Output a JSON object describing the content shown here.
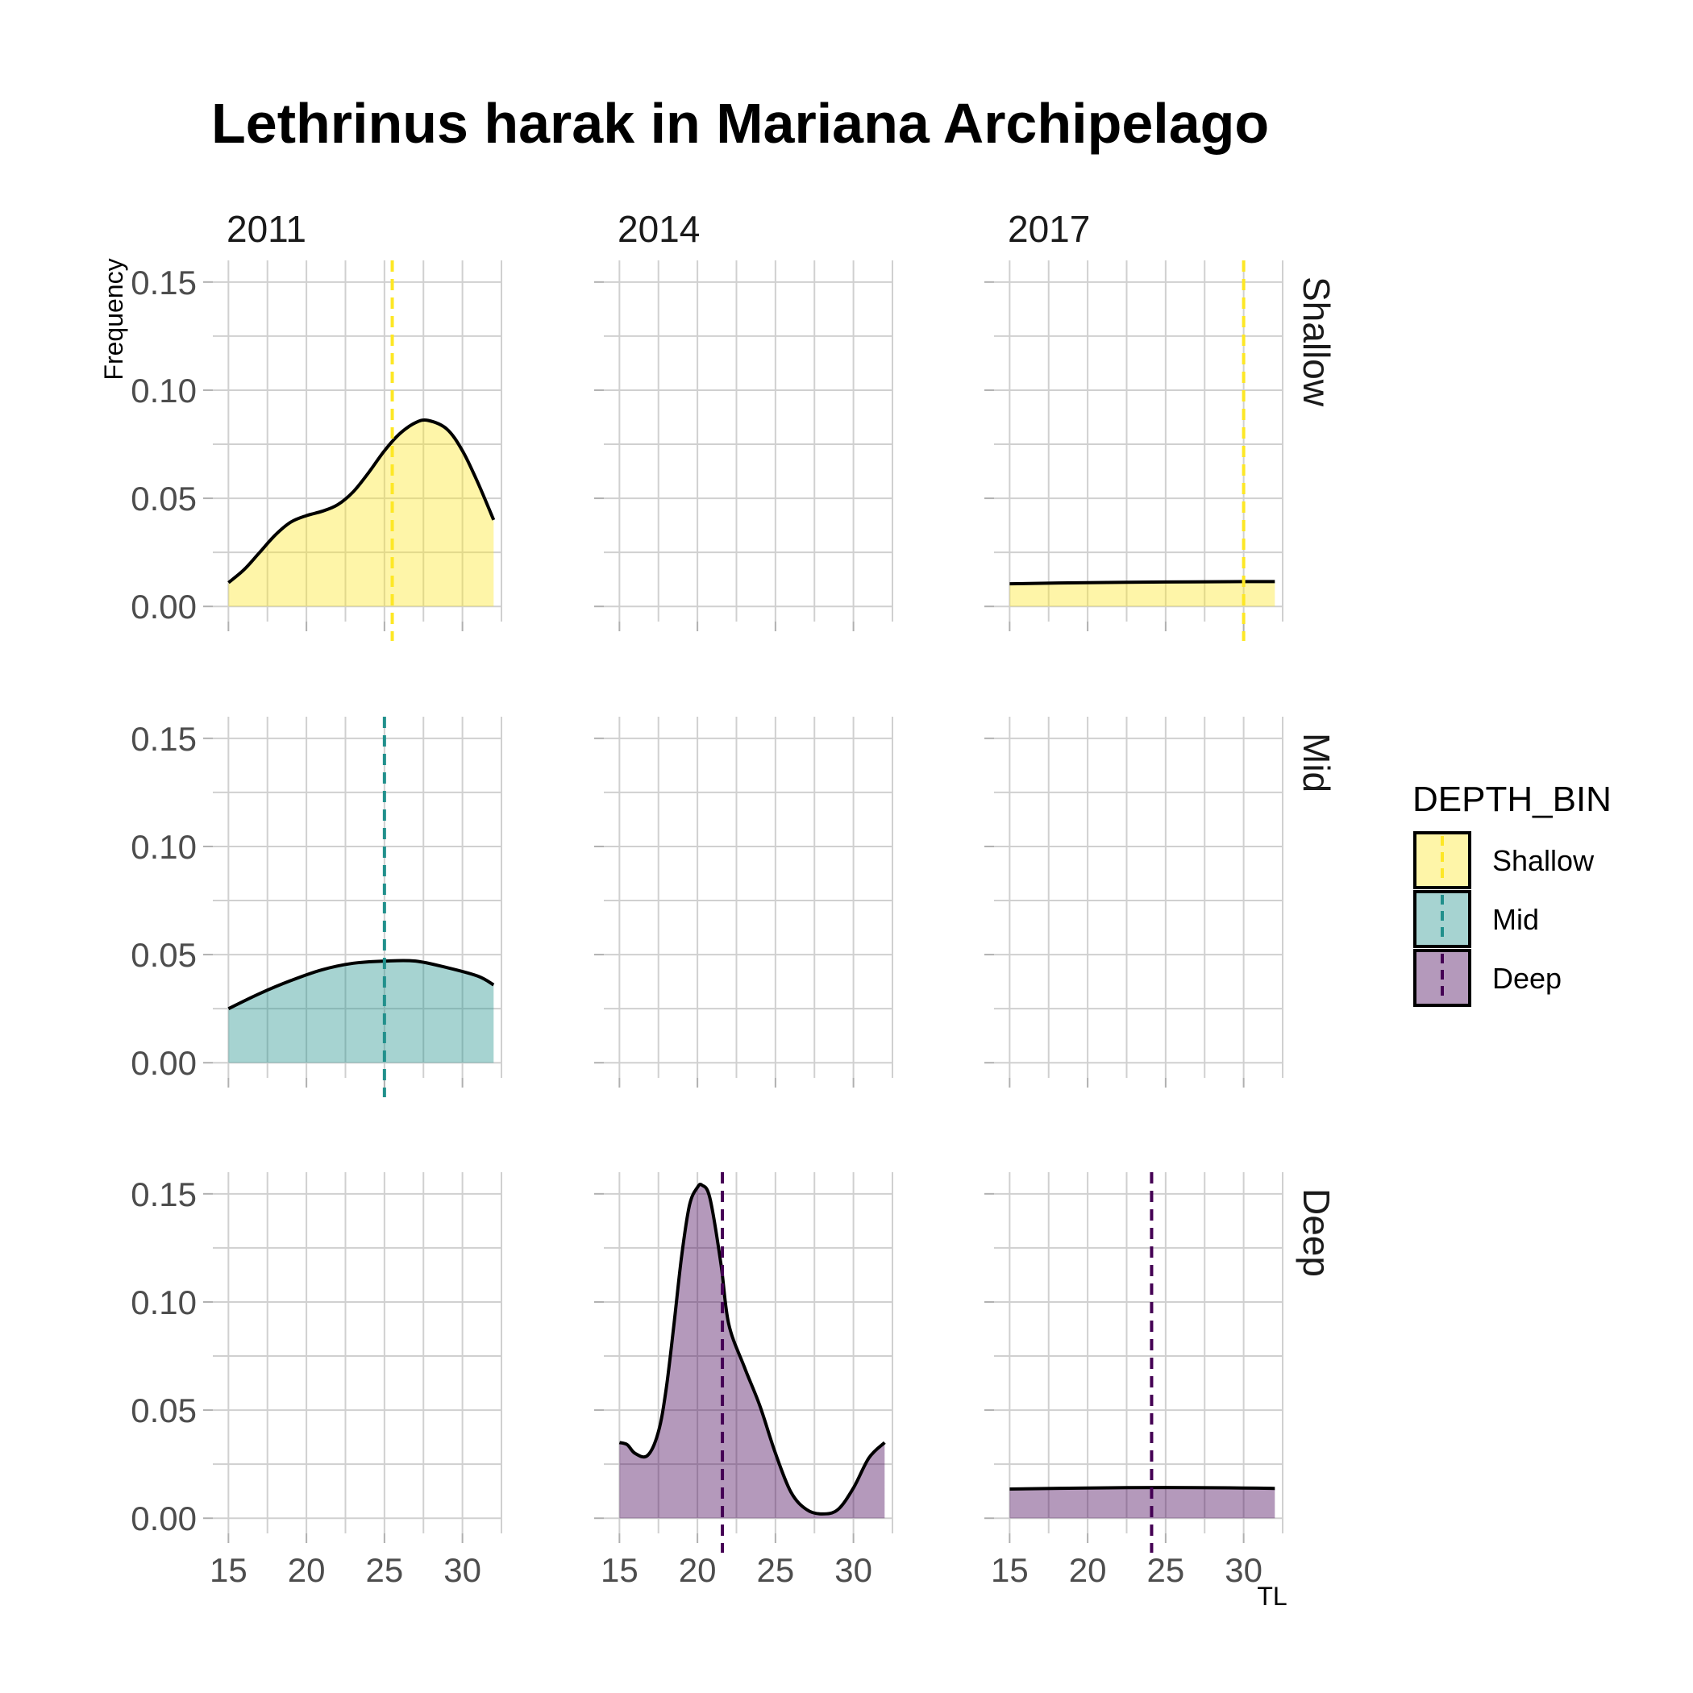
{
  "chart_data": {
    "type": "area",
    "title": "Lethrinus harak in Mariana Archipelago",
    "xlabel": "TL",
    "ylabel": "Frequency",
    "xlim": [
      14,
      32.5
    ],
    "ylim": [
      -0.007,
      0.16
    ],
    "x_ticks": [
      15,
      20,
      25,
      30
    ],
    "y_ticks": [
      "0.00",
      "0.05",
      "0.10",
      "0.15"
    ],
    "y_tick_values": [
      0,
      0.05,
      0.1,
      0.15
    ],
    "grid": true,
    "columns": [
      "2011",
      "2014",
      "2017"
    ],
    "rows": [
      "Shallow",
      "Mid",
      "Deep"
    ],
    "legend": {
      "title": "DEPTH_BIN",
      "position": "right",
      "items": [
        {
          "label": "Shallow",
          "fill": "#fde725",
          "line": "#fde725"
        },
        {
          "label": "Mid",
          "fill": "#21908c",
          "line": "#21908c"
        },
        {
          "label": "Deep",
          "fill": "#440154",
          "line": "#440154"
        }
      ]
    },
    "panels": [
      {
        "row": "Shallow",
        "col": "2011",
        "color": "#fde725",
        "mean": 25.5,
        "x": [
          15,
          16,
          17,
          18,
          19,
          20,
          21,
          22,
          23,
          24,
          25,
          26,
          27,
          27.8,
          29,
          30,
          31,
          32
        ],
        "y": [
          0.011,
          0.017,
          0.025,
          0.033,
          0.039,
          0.042,
          0.044,
          0.047,
          0.053,
          0.062,
          0.072,
          0.08,
          0.085,
          0.086,
          0.082,
          0.072,
          0.057,
          0.04
        ]
      },
      {
        "row": "Shallow",
        "col": "2017",
        "color": "#fde725",
        "mean": 30,
        "x": [
          15,
          20,
          25,
          30,
          32
        ],
        "y": [
          0.0105,
          0.011,
          0.0113,
          0.0115,
          0.0115
        ]
      },
      {
        "row": "Mid",
        "col": "2011",
        "color": "#21908c",
        "mean": 25,
        "x": [
          15,
          17,
          19,
          21,
          23,
          25,
          27,
          29,
          31,
          32
        ],
        "y": [
          0.025,
          0.032,
          0.038,
          0.043,
          0.046,
          0.047,
          0.047,
          0.044,
          0.04,
          0.036
        ]
      },
      {
        "row": "Deep",
        "col": "2014",
        "color": "#440154",
        "mean": 21.6,
        "x": [
          15,
          15.5,
          16,
          16.8,
          17.5,
          18,
          18.5,
          19,
          19.5,
          20,
          20.3,
          20.8,
          21.5,
          22,
          23,
          24,
          25,
          26,
          27,
          28,
          29,
          30,
          31,
          32
        ],
        "y": [
          0.035,
          0.034,
          0.03,
          0.029,
          0.04,
          0.06,
          0.09,
          0.122,
          0.145,
          0.153,
          0.154,
          0.148,
          0.118,
          0.09,
          0.07,
          0.052,
          0.03,
          0.012,
          0.004,
          0.002,
          0.004,
          0.014,
          0.028,
          0.035
        ]
      },
      {
        "row": "Deep",
        "col": "2017",
        "color": "#440154",
        "mean": 24.1,
        "x": [
          15,
          20,
          25,
          30,
          32
        ],
        "y": [
          0.0135,
          0.014,
          0.0142,
          0.014,
          0.0138
        ]
      }
    ]
  }
}
